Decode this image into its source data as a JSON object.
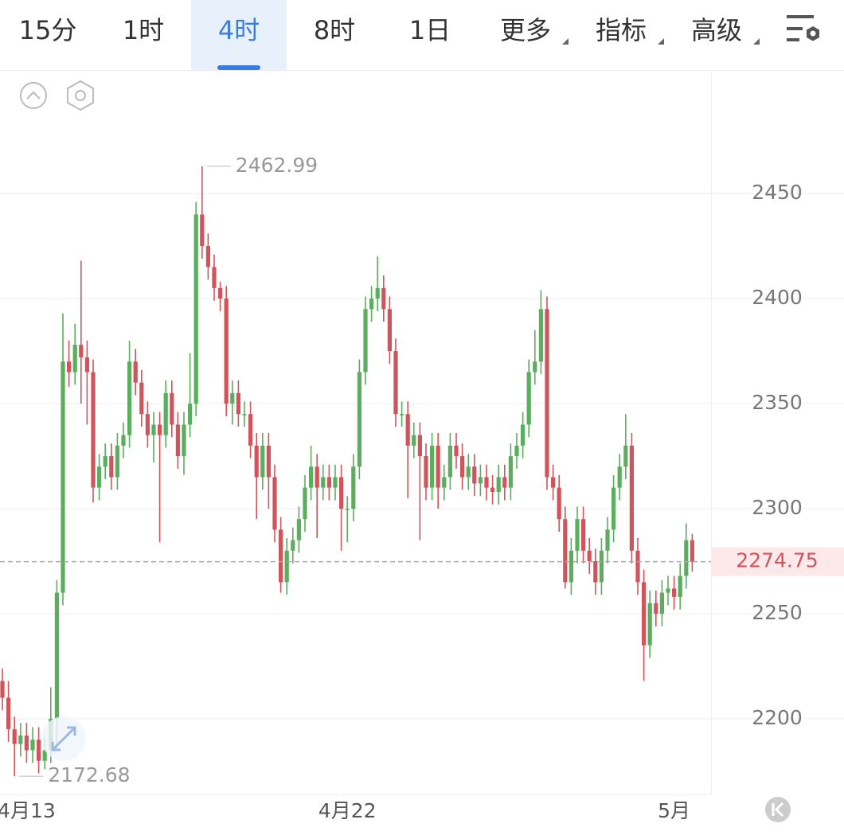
{
  "toolbar": {
    "tabs": [
      "15分",
      "1时",
      "4时",
      "8时",
      "1日",
      "更多",
      "指标",
      "高级"
    ],
    "active": 2
  },
  "chart_data": {
    "type": "candlestick",
    "categories": [
      null,
      null,
      null,
      null,
      "4月13",
      null,
      null,
      null,
      null,
      null,
      null,
      null,
      null,
      null,
      null,
      null,
      null,
      null,
      null,
      null,
      null,
      null,
      null,
      null,
      null,
      null,
      null,
      null,
      null,
      null,
      null,
      null,
      null,
      null,
      null,
      null,
      null,
      null,
      null,
      null,
      null,
      null,
      null,
      null,
      null,
      null,
      null,
      null,
      null,
      null,
      null,
      null,
      null,
      null,
      null,
      null,
      null,
      "4月22",
      null,
      null,
      null,
      null,
      null,
      null,
      null,
      null,
      null,
      null,
      null,
      null,
      null,
      null,
      null,
      null,
      null,
      null,
      null,
      null,
      null,
      null,
      null,
      null,
      null,
      null,
      null,
      null,
      null,
      null,
      null,
      null,
      null,
      null,
      null,
      null,
      null,
      null,
      null,
      null,
      null,
      null,
      null,
      null,
      null,
      null,
      null,
      null,
      null,
      null,
      null,
      null,
      null,
      "5月",
      null,
      null,
      null
    ],
    "open": [
      2218,
      2210,
      2195,
      2188,
      2192,
      2185,
      2190,
      2180,
      2185,
      2200,
      2260,
      2370,
      2365,
      2378,
      2372,
      2365,
      2310,
      2320,
      2325,
      2315,
      2330,
      2335,
      2370,
      2360,
      2345,
      2335,
      2340,
      2335,
      2355,
      2340,
      2325,
      2340,
      2350,
      2440,
      2425,
      2415,
      2405,
      2400,
      2350,
      2355,
      2345,
      2345,
      2330,
      2315,
      2330,
      2315,
      2290,
      2265,
      2280,
      2285,
      2295,
      2310,
      2320,
      2310,
      2315,
      2310,
      2315,
      2300,
      2300,
      2320,
      2365,
      2395,
      2400,
      2405,
      2395,
      2375,
      2345,
      2345,
      2330,
      2335,
      2325,
      2310,
      2330,
      2310,
      2315,
      2330,
      2325,
      2315,
      2320,
      2312,
      2315,
      2310,
      2308,
      2315,
      2310,
      2325,
      2330,
      2340,
      2365,
      2370,
      2395,
      2315,
      2310,
      2295,
      2265,
      2280,
      2295,
      2280,
      2275,
      2265,
      2280,
      2290,
      2310,
      2320,
      2330,
      2280,
      2265,
      2235,
      2255,
      2250,
      2260,
      2262,
      2258,
      2268,
      2285
    ],
    "high": [
      2224,
      2218,
      2201,
      2198,
      2198,
      2196,
      2196,
      2191,
      2215,
      2266,
      2393,
      2380,
      2388,
      2418,
      2380,
      2371,
      2326,
      2331,
      2331,
      2336,
      2341,
      2380,
      2376,
      2366,
      2351,
      2346,
      2346,
      2361,
      2361,
      2346,
      2346,
      2374,
      2446,
      2462.99,
      2431,
      2421,
      2408,
      2406,
      2361,
      2361,
      2351,
      2351,
      2336,
      2336,
      2336,
      2321,
      2296,
      2286,
      2291,
      2301,
      2316,
      2330,
      2326,
      2321,
      2321,
      2321,
      2321,
      2306,
      2326,
      2371,
      2401,
      2406,
      2420,
      2411,
      2401,
      2381,
      2351,
      2351,
      2341,
      2341,
      2331,
      2336,
      2336,
      2321,
      2336,
      2336,
      2331,
      2326,
      2326,
      2321,
      2321,
      2316,
      2321,
      2321,
      2331,
      2336,
      2346,
      2371,
      2385,
      2404,
      2401,
      2321,
      2316,
      2301,
      2286,
      2301,
      2301,
      2286,
      2281,
      2286,
      2296,
      2316,
      2326,
      2345,
      2336,
      2286,
      2271,
      2261,
      2261,
      2266,
      2268,
      2268,
      2274,
      2293,
      2288
    ],
    "low": [
      2204,
      2189,
      2172.68,
      2182,
      2179,
      2179,
      2174,
      2176,
      2179,
      2185,
      2254,
      2358,
      2359,
      2350,
      2340,
      2303,
      2304,
      2314,
      2309,
      2309,
      2324,
      2329,
      2354,
      2339,
      2329,
      2322,
      2284,
      2329,
      2334,
      2319,
      2316,
      2334,
      2344,
      2419,
      2409,
      2399,
      2394,
      2344,
      2340,
      2339,
      2339,
      2324,
      2295,
      2309,
      2300,
      2284,
      2260,
      2259,
      2274,
      2279,
      2289,
      2304,
      2286,
      2304,
      2304,
      2304,
      2280,
      2284,
      2294,
      2314,
      2359,
      2389,
      2394,
      2389,
      2369,
      2339,
      2339,
      2305,
      2324,
      2285,
      2304,
      2304,
      2300,
      2304,
      2309,
      2319,
      2309,
      2309,
      2306,
      2306,
      2304,
      2302,
      2302,
      2304,
      2304,
      2319,
      2324,
      2334,
      2359,
      2364,
      2309,
      2304,
      2289,
      2262,
      2259,
      2274,
      2274,
      2269,
      2259,
      2259,
      2274,
      2284,
      2304,
      2314,
      2274,
      2259,
      2218,
      2229,
      2244,
      2244,
      2254,
      2252,
      2252,
      2262,
      2270
    ],
    "close": [
      2210,
      2195,
      2188,
      2192,
      2185,
      2190,
      2180,
      2185,
      2200,
      2260,
      2370,
      2365,
      2378,
      2372,
      2365,
      2310,
      2320,
      2325,
      2315,
      2330,
      2335,
      2370,
      2360,
      2345,
      2335,
      2340,
      2335,
      2355,
      2340,
      2325,
      2340,
      2350,
      2440,
      2425,
      2415,
      2405,
      2400,
      2350,
      2355,
      2345,
      2345,
      2330,
      2315,
      2330,
      2315,
      2290,
      2265,
      2280,
      2285,
      2295,
      2310,
      2320,
      2310,
      2315,
      2310,
      2315,
      2300,
      2300,
      2320,
      2365,
      2395,
      2400,
      2405,
      2395,
      2375,
      2345,
      2345,
      2330,
      2335,
      2325,
      2310,
      2330,
      2310,
      2315,
      2330,
      2325,
      2315,
      2320,
      2312,
      2315,
      2310,
      2308,
      2315,
      2310,
      2325,
      2330,
      2340,
      2365,
      2370,
      2395,
      2315,
      2310,
      2295,
      2265,
      2280,
      2295,
      2280,
      2275,
      2265,
      2280,
      2290,
      2310,
      2320,
      2330,
      2280,
      2265,
      2235,
      2255,
      2250,
      2260,
      2262,
      2258,
      2268,
      2285,
      2274.75
    ],
    "up_color": "#5aae5e",
    "down_color": "#d0545a",
    "ylim": [
      2164,
      2508
    ],
    "yticks": [
      2200,
      2250,
      2300,
      2350,
      2400,
      2450
    ],
    "grid": true
  }
}
